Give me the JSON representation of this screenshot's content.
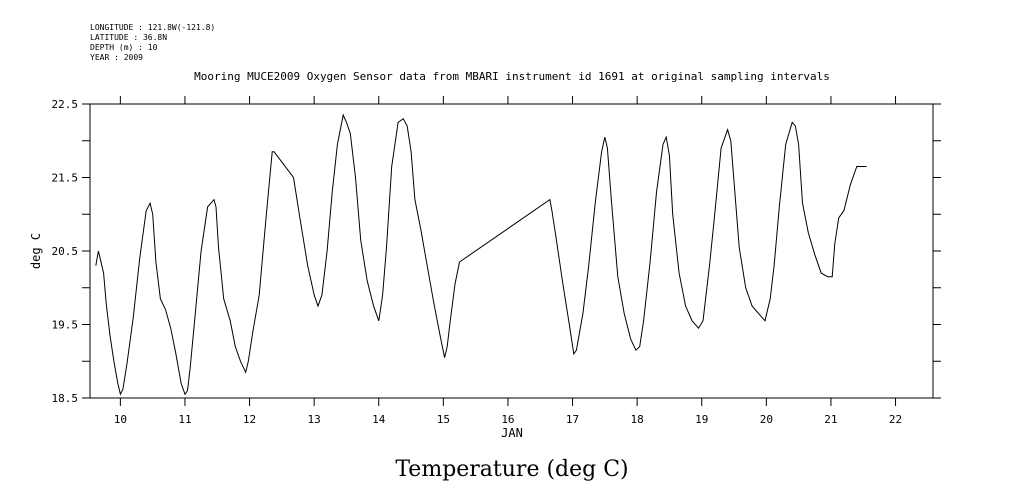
{
  "header": {
    "longitude": "LONGITUDE : 121.8W(-121.8)",
    "latitude": "LATITUDE : 36.8N",
    "depth": "DEPTH (m) : 10",
    "year": "YEAR : 2009"
  },
  "caption": "Temperature (deg C)",
  "chart_data": {
    "type": "line",
    "title": "Mooring MUCE2009 Oxygen Sensor data from MBARI instrument id 1691 at original sampling intervals",
    "xlabel": "JAN",
    "ylabel": "deg C",
    "xlim": [
      9.53,
      22.58
    ],
    "ylim": [
      18.5,
      22.5
    ],
    "x_ticks": [
      10,
      11,
      12,
      13,
      14,
      15,
      16,
      17,
      18,
      19,
      20,
      21,
      22
    ],
    "x_tick_labels": [
      "10",
      "11",
      "12",
      "13",
      "14",
      "15",
      "16",
      "17",
      "18",
      "19",
      "20",
      "21",
      "22"
    ],
    "y_ticks": [
      18.5,
      19.0,
      19.5,
      20.0,
      20.5,
      21.0,
      21.5,
      22.0,
      22.5
    ],
    "y_tick_labels": [
      "18.5",
      "",
      "19.5",
      "",
      "20.5",
      "",
      "21.5",
      "",
      "22.5"
    ],
    "grid": false,
    "series": [
      {
        "x": [
          9.62,
          9.66,
          9.7,
          9.74,
          9.78,
          9.84,
          9.9,
          9.96,
          10.0,
          10.04,
          10.1,
          10.2,
          10.3,
          10.4,
          10.46,
          10.5,
          10.55,
          10.62,
          10.7,
          10.78,
          10.86,
          10.94,
          11.0,
          11.04,
          11.08,
          11.15,
          11.25,
          11.35,
          11.45,
          11.48,
          11.52,
          11.6,
          11.7,
          11.78,
          11.86,
          11.94,
          11.98,
          12.05,
          12.15,
          12.25,
          12.35,
          12.38,
          12.68,
          12.78,
          12.9,
          13.0,
          13.06,
          13.12,
          13.2,
          13.28,
          13.36,
          13.45,
          13.5,
          13.56,
          13.64,
          13.72,
          13.82,
          13.92,
          14.0,
          14.06,
          14.12,
          14.2,
          14.3,
          14.38,
          14.44,
          14.5,
          14.56,
          14.65,
          14.75,
          14.85,
          14.95,
          15.02,
          15.06,
          15.1,
          15.18,
          15.25,
          16.65,
          16.68,
          16.75,
          16.85,
          16.95,
          17.02,
          17.06,
          17.1,
          17.16,
          17.25,
          17.35,
          17.45,
          17.5,
          17.54,
          17.6,
          17.7,
          17.8,
          17.9,
          17.98,
          18.04,
          18.1,
          18.2,
          18.3,
          18.4,
          18.45,
          18.5,
          18.55,
          18.65,
          18.75,
          18.85,
          18.95,
          19.02,
          19.06,
          19.12,
          19.2,
          19.3,
          19.4,
          19.45,
          19.5,
          19.58,
          19.68,
          19.78,
          19.88,
          19.98,
          20.06,
          20.12,
          20.2,
          20.3,
          20.4,
          20.45,
          20.5,
          20.56,
          20.65,
          20.75,
          20.85,
          20.95,
          21.02,
          21.06,
          21.12,
          21.2,
          21.3,
          21.4,
          21.47,
          21.55
        ],
        "y": [
          20.3,
          20.5,
          20.35,
          20.2,
          19.8,
          19.35,
          19.0,
          18.7,
          18.55,
          18.62,
          18.95,
          19.6,
          20.4,
          21.05,
          21.15,
          21.0,
          20.35,
          19.85,
          19.7,
          19.45,
          19.1,
          18.7,
          18.55,
          18.6,
          18.9,
          19.55,
          20.5,
          21.1,
          21.2,
          21.1,
          20.55,
          19.85,
          19.55,
          19.2,
          19.0,
          18.85,
          19.0,
          19.4,
          19.9,
          20.9,
          21.85,
          21.85,
          21.5,
          20.95,
          20.3,
          19.9,
          19.75,
          19.9,
          20.5,
          21.3,
          21.95,
          22.35,
          22.25,
          22.1,
          21.5,
          20.65,
          20.1,
          19.75,
          19.55,
          19.9,
          20.55,
          21.65,
          22.25,
          22.3,
          22.2,
          21.85,
          21.2,
          20.8,
          20.3,
          19.8,
          19.35,
          19.05,
          19.2,
          19.5,
          20.05,
          20.35,
          21.2,
          21.05,
          20.65,
          20.05,
          19.5,
          19.1,
          19.15,
          19.35,
          19.65,
          20.3,
          21.15,
          21.85,
          22.05,
          21.9,
          21.2,
          20.15,
          19.65,
          19.3,
          19.15,
          19.2,
          19.55,
          20.35,
          21.3,
          21.95,
          22.05,
          21.8,
          21.0,
          20.2,
          19.75,
          19.55,
          19.45,
          19.55,
          19.85,
          20.3,
          21.0,
          21.9,
          22.15,
          22.0,
          21.45,
          20.55,
          20.0,
          19.75,
          19.65,
          19.55,
          19.85,
          20.3,
          21.1,
          21.95,
          22.25,
          22.2,
          21.95,
          21.15,
          20.75,
          20.45,
          20.2,
          20.15,
          20.15,
          20.6,
          20.95,
          21.05,
          21.4,
          21.65,
          21.65,
          21.65
        ]
      }
    ]
  }
}
